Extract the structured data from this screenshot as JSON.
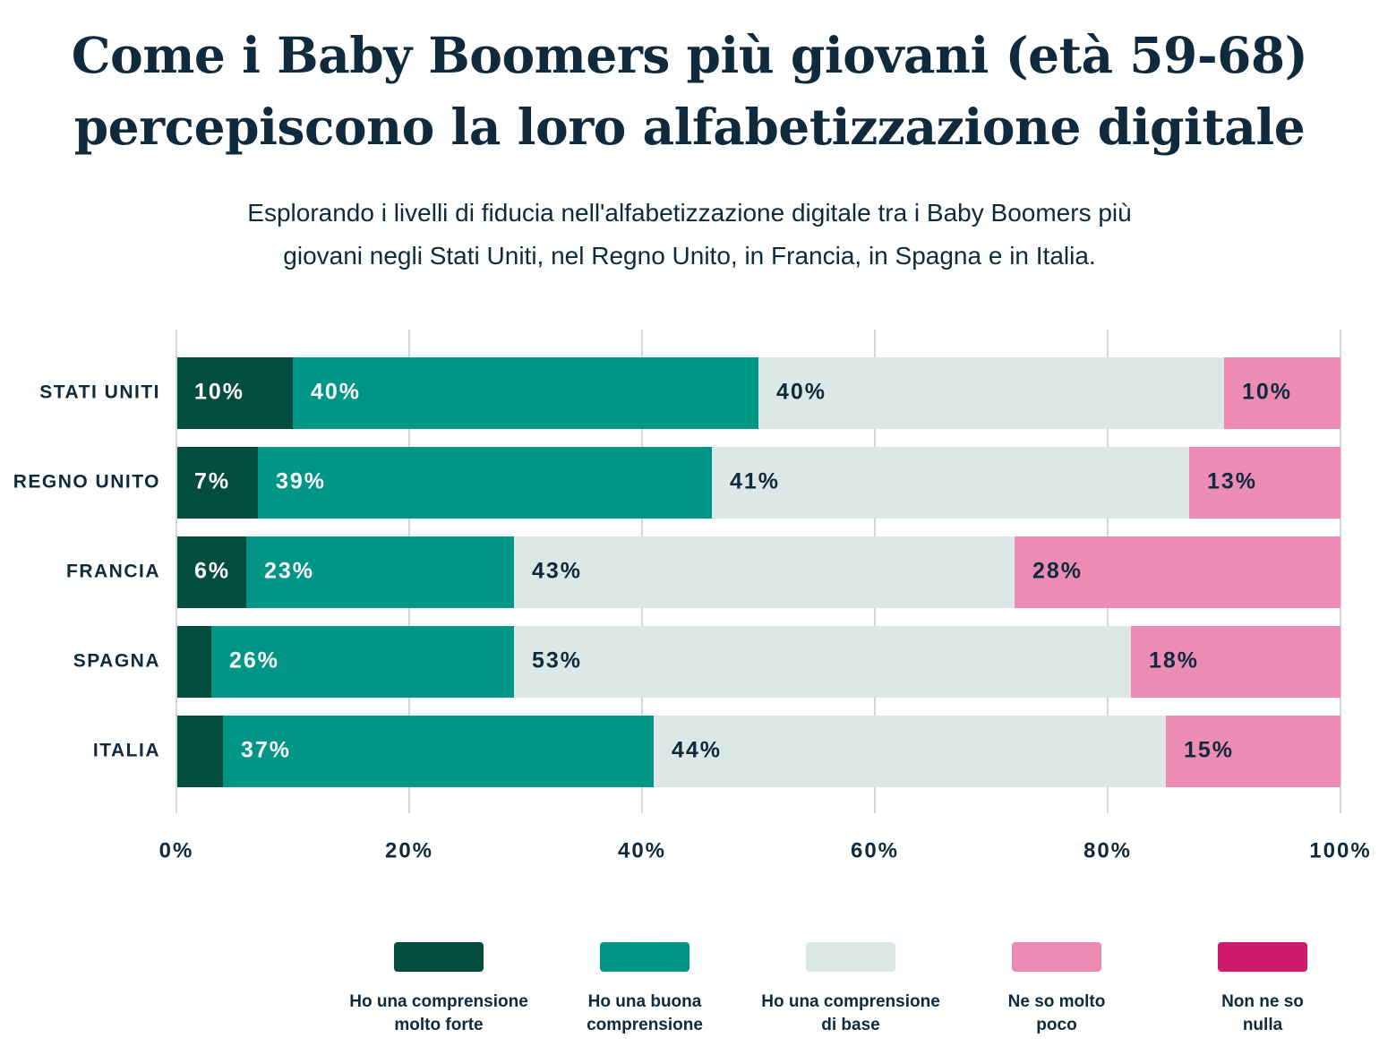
{
  "chart_data": {
    "type": "stacked-bar-horizontal",
    "title": "Come i Baby Boomers più giovani (età 59-68)\npercepiscono la loro alfabetizzazione digitale",
    "subtitle": "Esplorando i livelli di fiducia nell'alfabetizzazione digitale tra i Baby Boomers più\ngiovani negli Stati Uniti, nel Regno Unito, in Francia, in Spagna e in Italia.",
    "categories": [
      "STATI UNITI",
      "REGNO UNITO",
      "FRANCIA",
      "SPAGNA",
      "ITALIA"
    ],
    "series": [
      {
        "name": "Ho una comprensione\nmolto forte",
        "color": "#034d3f",
        "label_color": "#ffffff",
        "values": [
          10,
          7,
          6,
          3,
          4
        ],
        "value_labels": [
          "10%",
          "7%",
          "6%",
          null,
          null
        ]
      },
      {
        "name": "Ho una buona\ncomprensione",
        "color": "#009687",
        "label_color": "#ffffff",
        "values": [
          40,
          39,
          23,
          26,
          37
        ],
        "value_labels": [
          "40%",
          "39%",
          "23%",
          "26%",
          "37%"
        ]
      },
      {
        "name": "Ho una comprensione\ndi base",
        "color": "#dbe8e6",
        "label_color": "#0f2a3c",
        "values": [
          40,
          41,
          43,
          53,
          44
        ],
        "value_labels": [
          "40%",
          "41%",
          "43%",
          "53%",
          "44%"
        ]
      },
      {
        "name": "Ne so molto\npoco",
        "color": "#ec8cb5",
        "label_color": "#0f2a3c",
        "values": [
          10,
          13,
          28,
          18,
          15
        ],
        "value_labels": [
          "10%",
          "13%",
          "28%",
          "18%",
          "15%"
        ]
      },
      {
        "name": "Non ne so\nnulla",
        "color": "#cf1a6b",
        "label_color": "#ffffff",
        "values": [
          0,
          0,
          0,
          0,
          0
        ],
        "value_labels": [
          null,
          null,
          null,
          null,
          null
        ]
      }
    ],
    "xlim": [
      0,
      100
    ],
    "xticks": [
      {
        "value": 0,
        "label": "0%"
      },
      {
        "value": 20,
        "label": "20%"
      },
      {
        "value": 40,
        "label": "40%"
      },
      {
        "value": 60,
        "label": "60%"
      },
      {
        "value": 80,
        "label": "80%"
      },
      {
        "value": 100,
        "label": "100%"
      }
    ],
    "grid": true
  }
}
